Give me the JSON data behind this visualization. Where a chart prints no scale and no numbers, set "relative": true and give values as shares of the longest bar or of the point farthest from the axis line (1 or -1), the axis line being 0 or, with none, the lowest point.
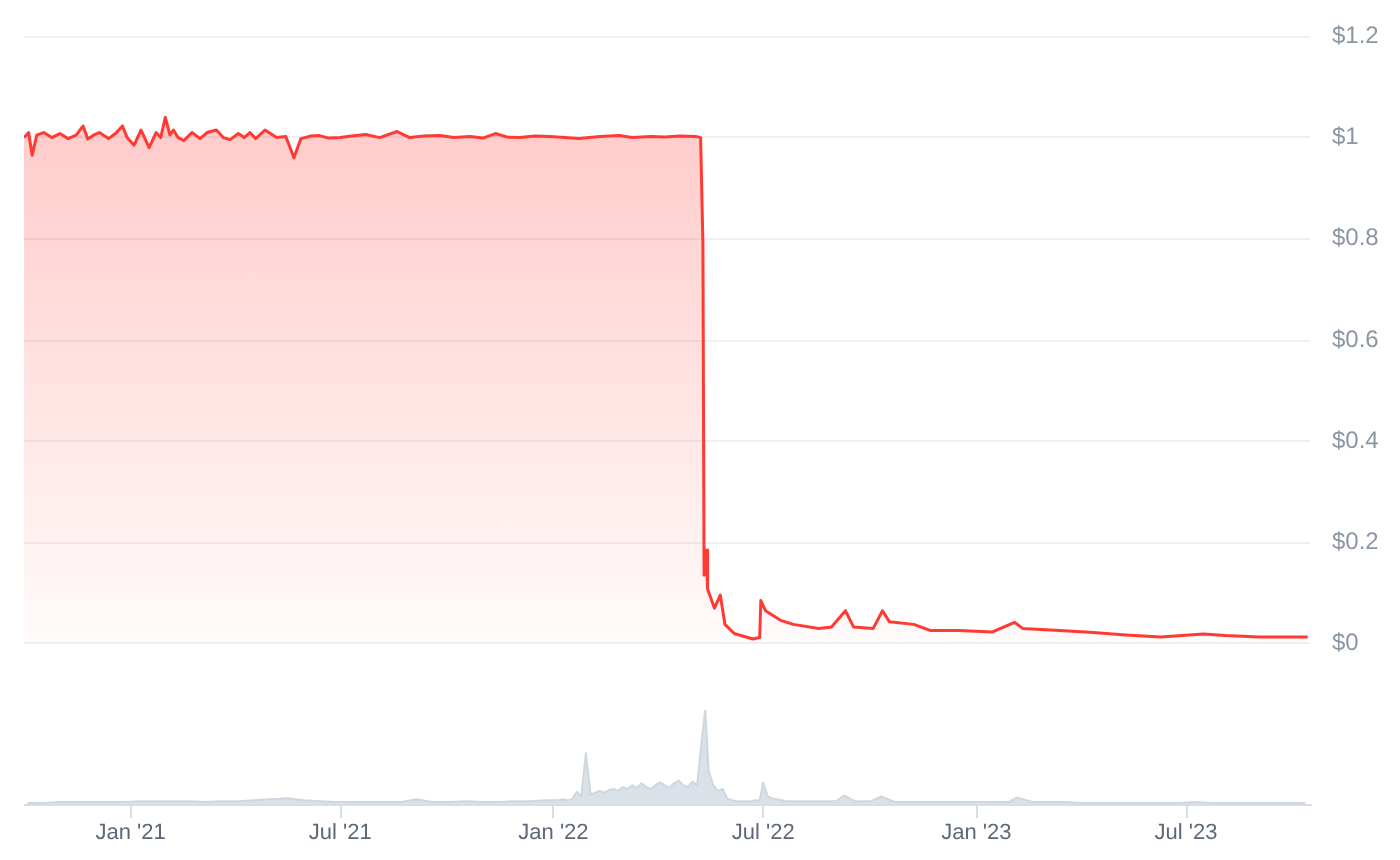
{
  "chart_data": [
    {
      "type": "area",
      "color": "#ff3a33",
      "x": [
        "2020-10-01",
        "2020-10-05",
        "2020-10-08",
        "2020-10-12",
        "2020-10-18",
        "2020-10-25",
        "2020-11-01",
        "2020-11-08",
        "2020-11-15",
        "2020-11-21",
        "2020-11-25",
        "2020-12-01",
        "2020-12-05",
        "2020-12-13",
        "2020-12-19",
        "2020-12-25",
        "2020-12-29",
        "2021-01-04",
        "2021-01-10",
        "2021-01-17",
        "2021-01-23",
        "2021-01-27",
        "2021-01-31",
        "2021-02-04",
        "2021-02-07",
        "2021-02-11",
        "2021-02-16",
        "2021-02-23",
        "2021-03-02",
        "2021-03-08",
        "2021-03-16",
        "2021-03-22",
        "2021-03-28",
        "2021-04-04",
        "2021-04-09",
        "2021-04-14",
        "2021-04-19",
        "2021-04-27",
        "2021-05-07",
        "2021-05-15",
        "2021-05-22",
        "2021-05-28",
        "2021-06-05",
        "2021-06-13",
        "2021-06-21",
        "2021-07-01",
        "2021-07-11",
        "2021-07-23",
        "2021-08-04",
        "2021-08-19",
        "2021-08-30",
        "2021-09-11",
        "2021-09-25",
        "2021-10-07",
        "2021-10-21",
        "2021-11-01",
        "2021-11-12",
        "2021-11-22",
        "2021-12-03",
        "2021-12-16",
        "2021-12-29",
        "2022-01-11",
        "2022-01-23",
        "2022-02-10",
        "2022-02-27",
        "2022-03-10",
        "2022-03-26",
        "2022-04-07",
        "2022-04-20",
        "2022-05-04",
        "2022-05-08",
        "2022-05-10",
        "2022-05-11",
        "2022-05-13",
        "2022-05-14",
        "2022-05-20",
        "2022-05-25",
        "2022-05-29",
        "2022-06-06",
        "2022-06-22",
        "2022-06-28",
        "2022-06-29",
        "2022-07-03",
        "2022-07-16",
        "2022-07-27",
        "2022-08-18",
        "2022-08-29",
        "2022-09-10",
        "2022-09-17",
        "2022-10-04",
        "2022-10-12",
        "2022-10-18",
        "2022-11-08",
        "2022-11-22",
        "2022-12-17",
        "2023-01-15",
        "2023-02-03",
        "2023-02-10",
        "2023-03-14",
        "2023-04-12",
        "2023-05-10",
        "2023-06-09",
        "2023-07-16",
        "2023-08-04",
        "2023-09-02",
        "2023-10-14"
      ],
      "values": [
        1.0,
        1.01,
        0.965,
        1.005,
        1.01,
        1.0,
        1.008,
        0.998,
        1.005,
        1.023,
        0.997,
        1.006,
        1.01,
        0.998,
        1.008,
        1.023,
        1.0,
        0.985,
        1.015,
        0.98,
        1.01,
        1.0,
        1.04,
        1.005,
        1.015,
        1.0,
        0.994,
        1.01,
        0.998,
        1.01,
        1.015,
        1.0,
        0.996,
        1.008,
        1.0,
        1.01,
        0.998,
        1.015,
        1.0,
        1.002,
        0.96,
        0.998,
        1.003,
        1.004,
        0.999,
        1.0,
        1.003,
        1.006,
        1.0,
        1.012,
        1.0,
        1.003,
        1.004,
        1.0,
        1.002,
        0.999,
        1.008,
        1.001,
        1.0,
        1.003,
        1.002,
        1.0,
        0.998,
        1.002,
        1.004,
        1.0,
        1.002,
        1.001,
        1.003,
        1.002,
        1.0,
        0.79,
        0.135,
        0.185,
        0.108,
        0.07,
        0.096,
        0.038,
        0.02,
        0.009,
        0.012,
        0.085,
        0.065,
        0.046,
        0.038,
        0.03,
        0.033,
        0.065,
        0.033,
        0.03,
        0.065,
        0.043,
        0.038,
        0.026,
        0.026,
        0.023,
        0.042,
        0.03,
        0.026,
        0.022,
        0.017,
        0.013,
        0.019,
        0.016,
        0.013,
        0.013
      ],
      "xlim": [
        "2020-10-01",
        "2023-10-16"
      ],
      "ylim": [
        0,
        1.2
      ],
      "yticks": [
        {
          "value": 0,
          "label": "$0"
        },
        {
          "value": 0.2,
          "label": "$0.2"
        },
        {
          "value": 0.4,
          "label": "$0.4"
        },
        {
          "value": 0.6,
          "label": "$0.6"
        },
        {
          "value": 0.8,
          "label": "$0.8"
        },
        {
          "value": 1,
          "label": "$1"
        },
        {
          "value": 1.2,
          "label": "$1.2"
        }
      ],
      "grid": "y",
      "tick_labels": "y"
    },
    {
      "type": "area",
      "color": "#cfd7e0",
      "relative": true,
      "x": [
        "2020-10-04",
        "2020-10-18",
        "2020-11-01",
        "2020-11-15",
        "2020-11-29",
        "2020-12-13",
        "2020-12-27",
        "2021-01-10",
        "2021-01-24",
        "2021-02-07",
        "2021-02-21",
        "2021-03-07",
        "2021-03-21",
        "2021-04-04",
        "2021-04-18",
        "2021-05-02",
        "2021-05-16",
        "2021-05-30",
        "2021-06-13",
        "2021-06-27",
        "2021-07-11",
        "2021-07-25",
        "2021-08-08",
        "2021-08-22",
        "2021-09-05",
        "2021-09-19",
        "2021-10-03",
        "2021-10-17",
        "2021-10-31",
        "2021-11-14",
        "2021-11-28",
        "2021-12-12",
        "2021-12-26",
        "2022-01-01",
        "2022-01-05",
        "2022-01-09",
        "2022-01-13",
        "2022-01-17",
        "2022-01-21",
        "2022-01-25",
        "2022-01-29",
        "2022-02-02",
        "2022-02-06",
        "2022-02-10",
        "2022-02-14",
        "2022-02-18",
        "2022-02-22",
        "2022-02-26",
        "2022-03-02",
        "2022-03-06",
        "2022-03-10",
        "2022-03-14",
        "2022-03-18",
        "2022-03-22",
        "2022-03-26",
        "2022-03-30",
        "2022-04-03",
        "2022-04-07",
        "2022-04-11",
        "2022-04-15",
        "2022-04-19",
        "2022-04-23",
        "2022-04-27",
        "2022-05-01",
        "2022-05-05",
        "2022-05-09",
        "2022-05-12",
        "2022-05-15",
        "2022-05-19",
        "2022-05-23",
        "2022-05-27",
        "2022-05-31",
        "2022-06-04",
        "2022-06-08",
        "2022-06-12",
        "2022-06-16",
        "2022-06-20",
        "2022-06-24",
        "2022-06-28",
        "2022-07-01",
        "2022-07-05",
        "2022-07-09",
        "2022-07-13",
        "2022-07-17",
        "2022-07-21",
        "2022-07-25",
        "2022-07-29",
        "2022-08-07",
        "2022-08-21",
        "2022-09-02",
        "2022-09-09",
        "2022-09-18",
        "2022-10-02",
        "2022-10-11",
        "2022-10-23",
        "2022-11-06",
        "2022-11-20",
        "2022-12-04",
        "2022-12-18",
        "2023-01-01",
        "2023-01-15",
        "2023-01-29",
        "2023-02-05",
        "2023-02-19",
        "2023-03-05",
        "2023-03-19",
        "2023-04-02",
        "2023-04-16",
        "2023-04-30",
        "2023-05-14",
        "2023-05-28",
        "2023-06-11",
        "2023-06-25",
        "2023-07-09",
        "2023-07-23",
        "2023-08-06",
        "2023-08-20",
        "2023-09-03",
        "2023-09-17",
        "2023-10-01",
        "2023-10-12"
      ],
      "values": [
        0.01,
        0.01,
        0.02,
        0.02,
        0.02,
        0.02,
        0.02,
        0.03,
        0.03,
        0.03,
        0.03,
        0.02,
        0.03,
        0.03,
        0.04,
        0.05,
        0.06,
        0.04,
        0.03,
        0.02,
        0.02,
        0.02,
        0.02,
        0.02,
        0.05,
        0.02,
        0.02,
        0.03,
        0.02,
        0.02,
        0.03,
        0.03,
        0.04,
        0.04,
        0.04,
        0.05,
        0.04,
        0.05,
        0.13,
        0.08,
        0.54,
        0.1,
        0.12,
        0.14,
        0.12,
        0.15,
        0.16,
        0.14,
        0.18,
        0.16,
        0.2,
        0.17,
        0.22,
        0.18,
        0.16,
        0.2,
        0.23,
        0.2,
        0.17,
        0.22,
        0.25,
        0.2,
        0.18,
        0.24,
        0.2,
        0.68,
        1.0,
        0.35,
        0.2,
        0.14,
        0.16,
        0.06,
        0.04,
        0.03,
        0.03,
        0.03,
        0.03,
        0.04,
        0.04,
        0.23,
        0.08,
        0.06,
        0.05,
        0.04,
        0.03,
        0.03,
        0.03,
        0.03,
        0.03,
        0.03,
        0.09,
        0.03,
        0.03,
        0.08,
        0.02,
        0.02,
        0.02,
        0.02,
        0.02,
        0.02,
        0.02,
        0.02,
        0.07,
        0.02,
        0.02,
        0.02,
        0.01,
        0.01,
        0.01,
        0.01,
        0.01,
        0.01,
        0.01,
        0.02,
        0.01,
        0.01,
        0.01,
        0.01,
        0.01,
        0.01,
        0.01
      ],
      "xlim": [
        "2020-10-01",
        "2023-10-16"
      ],
      "xticks": [
        {
          "value": "2021-01-01",
          "label": "Jan '21"
        },
        {
          "value": "2021-07-01",
          "label": "Jul '21"
        },
        {
          "value": "2022-01-01",
          "label": "Jan '22"
        },
        {
          "value": "2022-07-01",
          "label": "Jul '22"
        },
        {
          "value": "2023-01-01",
          "label": "Jan '23"
        },
        {
          "value": "2023-07-01",
          "label": "Jul '23"
        }
      ],
      "tick_labels": "x"
    }
  ]
}
